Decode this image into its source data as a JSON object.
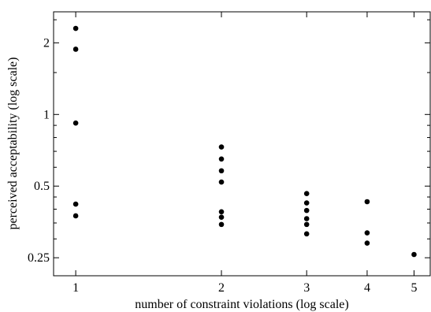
{
  "chart_data": {
    "type": "scatter",
    "xlabel": "number of constraint violations (log scale)",
    "ylabel": "perceived acceptability (log scale)",
    "x_scale": "log",
    "y_scale": "log",
    "xlim": [
      0.9,
      5.4
    ],
    "ylim": [
      0.21,
      2.7
    ],
    "x_ticks": [
      {
        "value": 1,
        "label": "1"
      },
      {
        "value": 2,
        "label": "2"
      },
      {
        "value": 3,
        "label": "3"
      },
      {
        "value": 4,
        "label": "4"
      },
      {
        "value": 5,
        "label": "5"
      }
    ],
    "y_ticks": [
      {
        "value": 0.25,
        "label": "0.25"
      },
      {
        "value": 0.5,
        "label": "0.5"
      },
      {
        "value": 1,
        "label": "1"
      },
      {
        "value": 2,
        "label": "2"
      }
    ],
    "grid": false,
    "marker_color": "#000000",
    "points": [
      {
        "x": 1,
        "y": 2.3
      },
      {
        "x": 1,
        "y": 1.88
      },
      {
        "x": 1,
        "y": 0.92
      },
      {
        "x": 1,
        "y": 0.42
      },
      {
        "x": 1,
        "y": 0.375
      },
      {
        "x": 2,
        "y": 0.73
      },
      {
        "x": 2,
        "y": 0.65
      },
      {
        "x": 2,
        "y": 0.58
      },
      {
        "x": 2,
        "y": 0.52
      },
      {
        "x": 2,
        "y": 0.39
      },
      {
        "x": 2,
        "y": 0.37
      },
      {
        "x": 2,
        "y": 0.345
      },
      {
        "x": 3,
        "y": 0.465
      },
      {
        "x": 3,
        "y": 0.425
      },
      {
        "x": 3,
        "y": 0.395
      },
      {
        "x": 3,
        "y": 0.365
      },
      {
        "x": 3,
        "y": 0.345
      },
      {
        "x": 3,
        "y": 0.315
      },
      {
        "x": 4,
        "y": 0.43
      },
      {
        "x": 4,
        "y": 0.318
      },
      {
        "x": 4,
        "y": 0.288
      },
      {
        "x": 5,
        "y": 0.258
      }
    ]
  }
}
